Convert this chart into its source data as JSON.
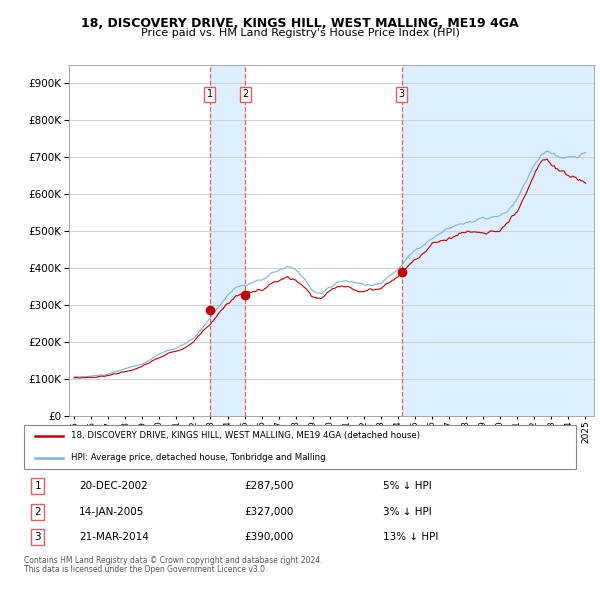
{
  "title": "18, DISCOVERY DRIVE, KINGS HILL, WEST MALLING, ME19 4GA",
  "subtitle": "Price paid vs. HM Land Registry's House Price Index (HPI)",
  "legend_line1": "18, DISCOVERY DRIVE, KINGS HILL, WEST MALLING, ME19 4GA (detached house)",
  "legend_line2": "HPI: Average price, detached house, Tonbridge and Malling",
  "footnote1": "Contains HM Land Registry data © Crown copyright and database right 2024.",
  "footnote2": "This data is licensed under the Open Government Licence v3.0.",
  "transactions": [
    {
      "num": 1,
      "date": "20-DEC-2002",
      "price": 287500,
      "pct": "5%",
      "dir": "↓"
    },
    {
      "num": 2,
      "date": "14-JAN-2005",
      "price": 327000,
      "pct": "3%",
      "dir": "↓"
    },
    {
      "num": 3,
      "date": "21-MAR-2014",
      "price": 390000,
      "pct": "13%",
      "dir": "↓"
    }
  ],
  "transaction_years": [
    2002.96,
    2005.04,
    2014.22
  ],
  "hpi_color": "#7ab3e0",
  "price_color": "#c00000",
  "vline_color": "#e06060",
  "shade_color": "#ddeeff",
  "background_color": "#ffffff",
  "grid_color": "#cccccc",
  "ylim_max": 950000
}
